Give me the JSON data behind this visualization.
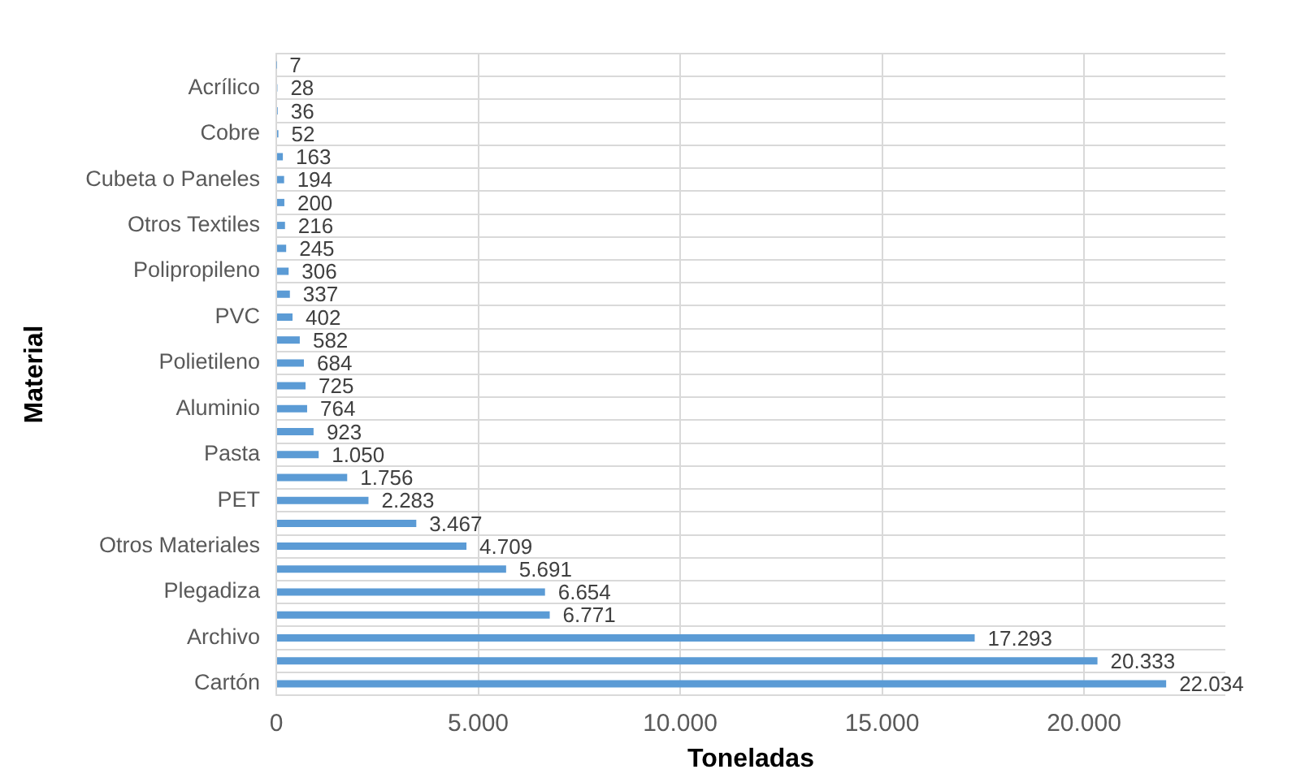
{
  "chart_data": {
    "type": "bar",
    "orientation": "horizontal",
    "xlabel": "Toneladas",
    "ylabel": "Material",
    "categories": [
      null,
      "Acrílico",
      null,
      "Cobre",
      null,
      "Cubeta o Paneles",
      null,
      "Otros Textiles",
      null,
      "Polipropileno",
      null,
      "PVC",
      null,
      "Polietileno",
      null,
      "Aluminio",
      null,
      "Pasta",
      null,
      "PET",
      null,
      "Otros Materiales",
      null,
      "Plegadiza",
      null,
      "Archivo",
      null,
      "Cartón"
    ],
    "values": [
      7,
      28,
      36,
      52,
      163,
      194,
      200,
      216,
      245,
      306,
      337,
      402,
      582,
      684,
      725,
      764,
      923,
      1050,
      1756,
      2283,
      3467,
      4709,
      5691,
      6654,
      6771,
      17293,
      20333,
      22034
    ],
    "value_labels": [
      "7",
      "28",
      "36",
      "52",
      "163",
      "194",
      "200",
      "216",
      "245",
      "306",
      "337",
      "402",
      "582",
      "684",
      "725",
      "764",
      "923",
      "1.050",
      "1.756",
      "2.283",
      "3.467",
      "4.709",
      "5.691",
      "6.654",
      "6.771",
      "17.293",
      "20.333",
      "22.034"
    ],
    "color": "#5b9bd5",
    "xlim": [
      0,
      23500
    ],
    "xticks": [
      0,
      {
        "value": 5000,
        "label": "5.000"
      },
      {
        "value": 10000,
        "label": "10.000"
      },
      {
        "value": 15000,
        "label": "15.000"
      },
      {
        "value": 20000,
        "label": "20.000"
      }
    ],
    "grid": true
  }
}
